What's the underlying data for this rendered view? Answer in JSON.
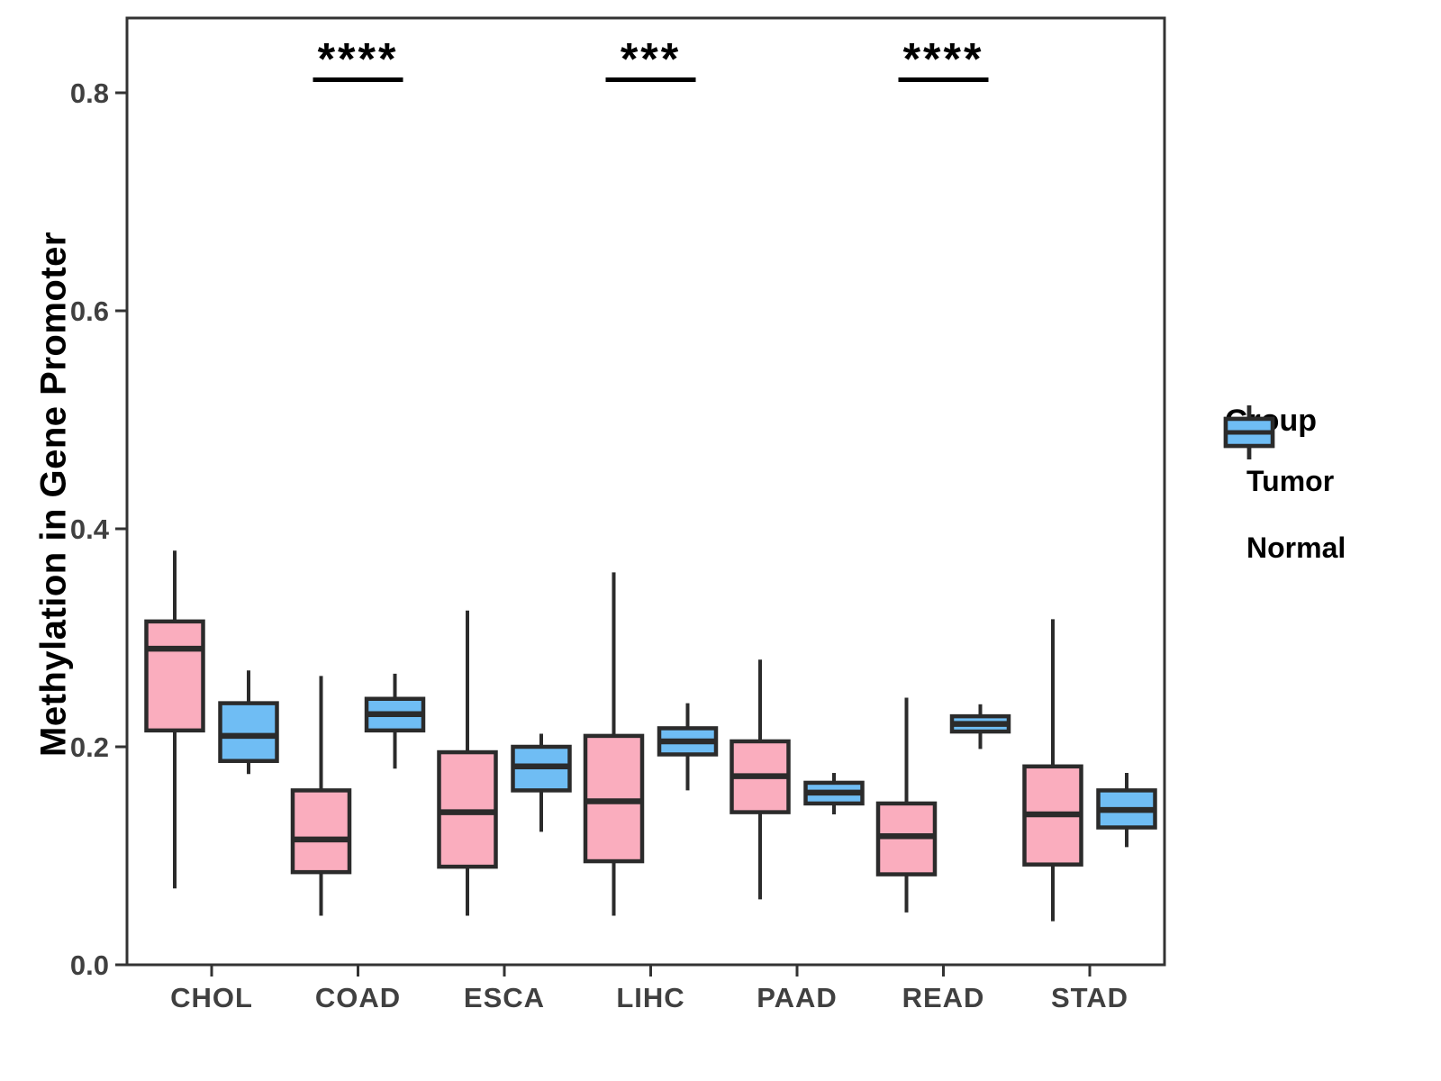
{
  "figure": {
    "ylabel": "Methylation in Gene Promoter",
    "xlabel": ""
  },
  "legend": {
    "title": "Group",
    "items": [
      {
        "label": "Tumor",
        "color_key": "tumor"
      },
      {
        "label": "Normal",
        "color_key": "normal"
      }
    ]
  },
  "colors": {
    "tumor": "#FAADBE",
    "normal": "#6FBDF4",
    "box_border": "#2B2B2B",
    "panel_border": "#333333",
    "axis_text": "#404040",
    "annotation": "#000000"
  },
  "chart_data": {
    "type": "boxplot",
    "title": "",
    "xlabel": "",
    "ylabel": "Methylation in Gene Promoter",
    "categories": [
      "CHOL",
      "COAD",
      "ESCA",
      "LIHC",
      "PAAD",
      "READ",
      "STAD"
    ],
    "ylim": [
      0,
      0.8686
    ],
    "yticks": [
      {
        "label": "0.0",
        "value": 0.0
      },
      {
        "label": "0.2",
        "value": 0.2
      },
      {
        "label": "0.4",
        "value": 0.4
      },
      {
        "label": "0.6",
        "value": 0.6
      },
      {
        "label": "0.8",
        "value": 0.8
      }
    ],
    "grid": false,
    "legend_position": "right",
    "series": [
      {
        "name": "Tumor",
        "color_key": "tumor",
        "boxes": [
          {
            "category": "CHOL",
            "low": 0.07,
            "q1": 0.215,
            "median": 0.29,
            "q3": 0.315,
            "high": 0.38
          },
          {
            "category": "COAD",
            "low": 0.045,
            "q1": 0.085,
            "median": 0.115,
            "q3": 0.16,
            "high": 0.265
          },
          {
            "category": "ESCA",
            "low": 0.045,
            "q1": 0.09,
            "median": 0.14,
            "q3": 0.195,
            "high": 0.325
          },
          {
            "category": "LIHC",
            "low": 0.045,
            "q1": 0.095,
            "median": 0.15,
            "q3": 0.21,
            "high": 0.36
          },
          {
            "category": "PAAD",
            "low": 0.06,
            "q1": 0.14,
            "median": 0.173,
            "q3": 0.205,
            "high": 0.28
          },
          {
            "category": "READ",
            "low": 0.048,
            "q1": 0.083,
            "median": 0.118,
            "q3": 0.148,
            "high": 0.245
          },
          {
            "category": "STAD",
            "low": 0.04,
            "q1": 0.092,
            "median": 0.138,
            "q3": 0.182,
            "high": 0.317
          }
        ]
      },
      {
        "name": "Normal",
        "color_key": "normal",
        "boxes": [
          {
            "category": "CHOL",
            "low": 0.175,
            "q1": 0.187,
            "median": 0.21,
            "q3": 0.24,
            "high": 0.27
          },
          {
            "category": "COAD",
            "low": 0.18,
            "q1": 0.215,
            "median": 0.23,
            "q3": 0.244,
            "high": 0.267
          },
          {
            "category": "ESCA",
            "low": 0.122,
            "q1": 0.16,
            "median": 0.182,
            "q3": 0.2,
            "high": 0.212
          },
          {
            "category": "LIHC",
            "low": 0.16,
            "q1": 0.193,
            "median": 0.205,
            "q3": 0.217,
            "high": 0.24
          },
          {
            "category": "PAAD",
            "low": 0.138,
            "q1": 0.148,
            "median": 0.158,
            "q3": 0.167,
            "high": 0.176
          },
          {
            "category": "READ",
            "low": 0.198,
            "q1": 0.214,
            "median": 0.221,
            "q3": 0.228,
            "high": 0.239
          },
          {
            "category": "STAD",
            "low": 0.108,
            "q1": 0.126,
            "median": 0.142,
            "q3": 0.16,
            "high": 0.176
          }
        ]
      }
    ],
    "annotations": [
      {
        "category": "COAD",
        "label": "****",
        "bar_value": 0.812
      },
      {
        "category": "LIHC",
        "label": "***",
        "bar_value": 0.812
      },
      {
        "category": "READ",
        "label": "****",
        "bar_value": 0.812
      }
    ]
  }
}
